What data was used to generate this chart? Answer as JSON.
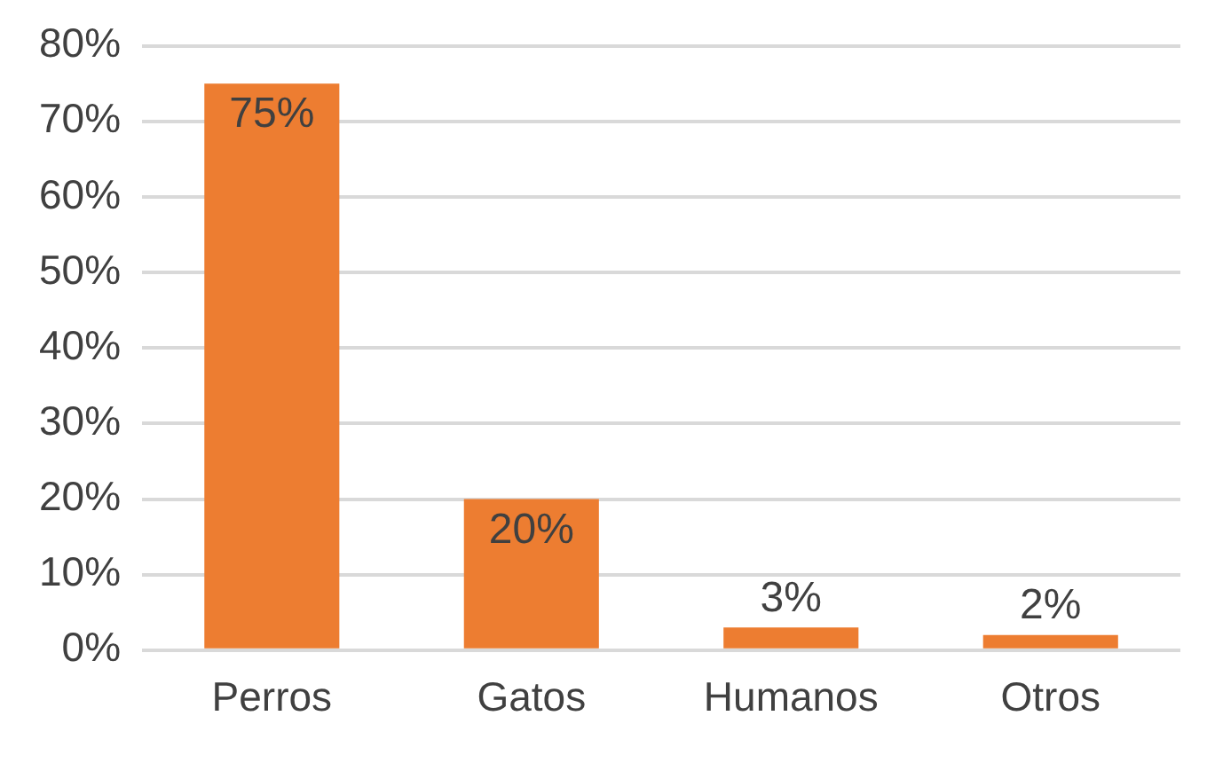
{
  "chart_data": {
    "type": "bar",
    "categories": [
      "Perros",
      "Gatos",
      "Humanos",
      "Otros"
    ],
    "values": [
      75,
      20,
      3,
      2
    ],
    "color": "#ed7d31",
    "value_labels": [
      "75%",
      "20%",
      "3%",
      "2%"
    ],
    "ylim": [
      0,
      80
    ],
    "yticks": [
      {
        "value": 0,
        "label": "0%"
      },
      {
        "value": 10,
        "label": "10%"
      },
      {
        "value": 20,
        "label": "20%"
      },
      {
        "value": 30,
        "label": "30%"
      },
      {
        "value": 40,
        "label": "40%"
      },
      {
        "value": 50,
        "label": "50%"
      },
      {
        "value": 60,
        "label": "60%"
      },
      {
        "value": 70,
        "label": "70%"
      },
      {
        "value": 80,
        "label": "80%"
      }
    ],
    "grid": "y"
  }
}
